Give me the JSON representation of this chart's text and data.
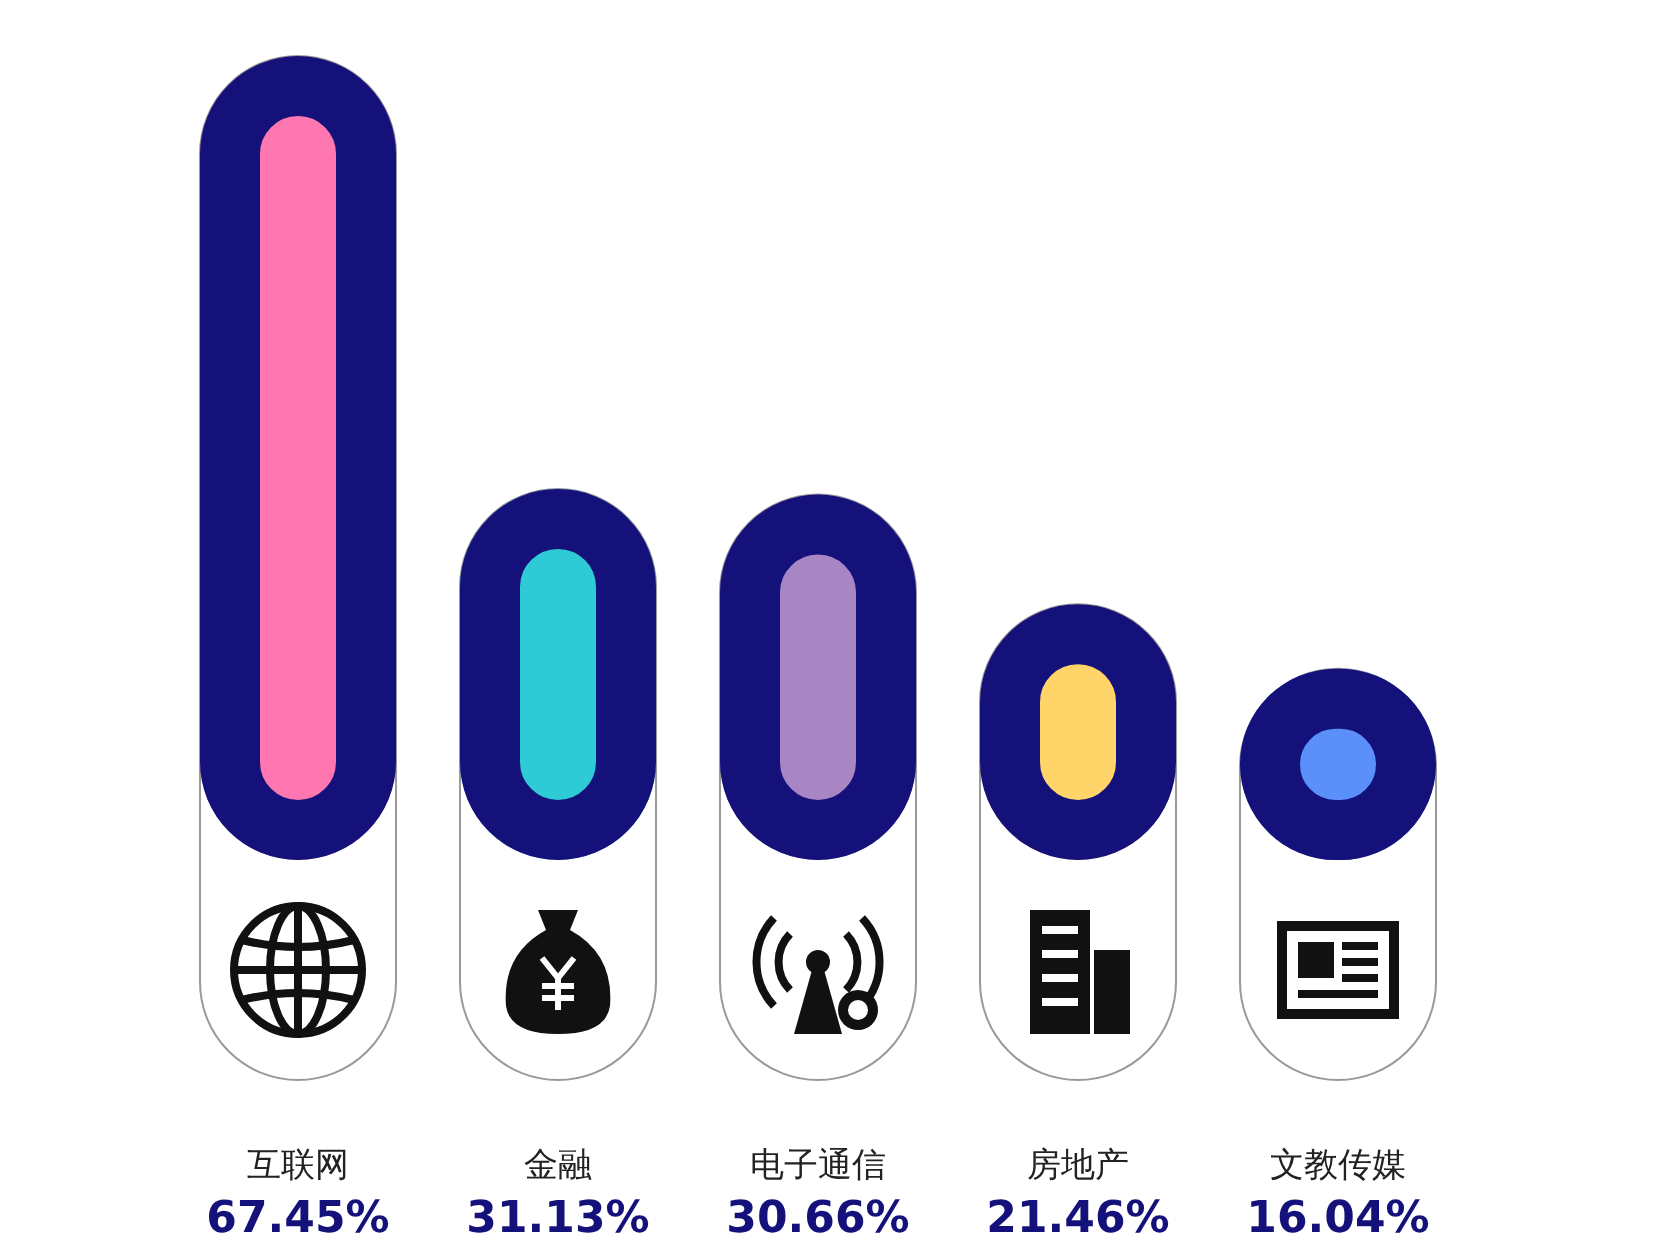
{
  "chart_data": {
    "type": "bar",
    "categories": [
      "互联网",
      "金融",
      "电子通信",
      "房地产",
      "文教传媒"
    ],
    "values": [
      67.45,
      31.13,
      30.66,
      21.46,
      16.04
    ],
    "value_labels": [
      "67.45%",
      "31.13%",
      "30.66%",
      "21.46%",
      "16.04%"
    ],
    "color": "#14117a",
    "colors": [
      "#ff77b0",
      "#2ecbd6",
      "#a886c4",
      "#ffd56a",
      "#5b8ff9"
    ]
  }
}
